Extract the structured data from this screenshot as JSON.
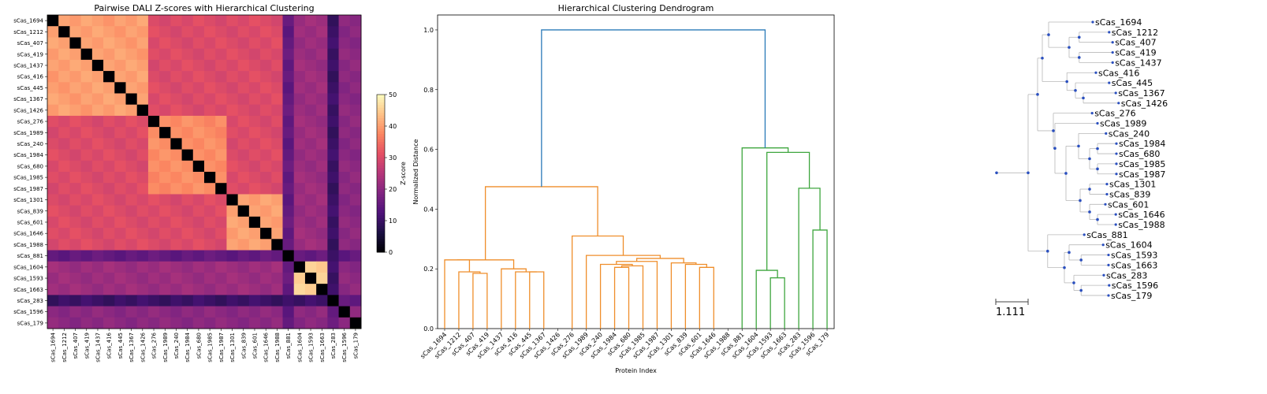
{
  "chart_data": [
    {
      "type": "heatmap",
      "title": "Pairwise DALI Z-scores with Hierarchical Clustering",
      "labels": [
        "sCas_1694",
        "sCas_1212",
        "sCas_407",
        "sCas_419",
        "sCas_1437",
        "sCas_416",
        "sCas_445",
        "sCas_1367",
        "sCas_1426",
        "sCas_276",
        "sCas_1989",
        "sCas_240",
        "sCas_1984",
        "sCas_680",
        "sCas_1985",
        "sCas_1987",
        "sCas_1301",
        "sCas_839",
        "sCas_601",
        "sCas_1646",
        "sCas_1988",
        "sCas_881",
        "sCas_1604",
        "sCas_1593",
        "sCas_1663",
        "sCas_283",
        "sCas_1596",
        "sCas_179"
      ],
      "clusters": [
        [
          0,
          8
        ],
        [
          9,
          20
        ],
        [
          21,
          21
        ],
        [
          22,
          24
        ],
        [
          25,
          25
        ],
        [
          26,
          27
        ]
      ],
      "block_values": [
        [
          40,
          30,
          30,
          15,
          22,
          10,
          20
        ],
        [
          30,
          38,
          30,
          15,
          22,
          10,
          20
        ],
        [
          30,
          30,
          40,
          15,
          22,
          10,
          20
        ],
        [
          15,
          15,
          15,
          0,
          15,
          10,
          15
        ],
        [
          22,
          22,
          22,
          15,
          45,
          10,
          20
        ],
        [
          10,
          10,
          10,
          10,
          10,
          0,
          15
        ],
        [
          20,
          20,
          20,
          15,
          20,
          15,
          20
        ]
      ],
      "colorbar": {
        "label": "Z-score",
        "range": [
          0,
          50
        ],
        "ticks": [
          0,
          10,
          20,
          30,
          40,
          50
        ]
      },
      "diagonal_value": 0
    },
    {
      "type": "dendrogram",
      "title": "Hierarchical Clustering Dendrogram",
      "xlabel": "Protein Index",
      "ylabel": "Normalized Distance",
      "ylim": [
        0,
        1.05
      ],
      "yticks": [
        "0.0",
        "0.2",
        "0.4",
        "0.6",
        "0.8",
        "1.0"
      ],
      "leaves": [
        "sCas_1694",
        "sCas_1212",
        "sCas_407",
        "sCas_419",
        "sCas_1437",
        "sCas_416",
        "sCas_445",
        "sCas_1367",
        "sCas_1426",
        "sCas_276",
        "sCas_1989",
        "sCas_240",
        "sCas_1984",
        "sCas_680",
        "sCas_1985",
        "sCas_1987",
        "sCas_1301",
        "sCas_839",
        "sCas_601",
        "sCas_1646",
        "sCas_1988",
        "sCas_881",
        "sCas_1604",
        "sCas_1593",
        "sCas_1663",
        "sCas_283",
        "sCas_1596",
        "sCas_179"
      ],
      "colors": {
        "cluster_a": "#ef8e2b",
        "cluster_b": "#3ea63e",
        "root": "#2a7ab8"
      },
      "links": [
        {
          "a": 2,
          "b": 3,
          "h": 0.185,
          "c": "cluster_a"
        },
        {
          "a": 1,
          "b": "n0",
          "h": 0.19,
          "c": "cluster_a"
        },
        {
          "a": 0,
          "b": "n1",
          "h": 0.23,
          "c": "cluster_a"
        },
        {
          "a": 6,
          "b": 7,
          "h": 0.19,
          "c": "cluster_a"
        },
        {
          "a": 5,
          "b": "n3",
          "h": 0.19,
          "c": "cluster_a"
        },
        {
          "a": 4,
          "b": "n4",
          "h": 0.2,
          "c": "cluster_a"
        },
        {
          "a": "n2",
          "b": "n5",
          "h": 0.23,
          "c": "cluster_a"
        },
        {
          "a": 12,
          "b": 13,
          "h": 0.205,
          "c": "cluster_a"
        },
        {
          "a": "n7",
          "b": 14,
          "h": 0.21,
          "c": "cluster_a"
        },
        {
          "a": 11,
          "b": "n8",
          "h": 0.215,
          "c": "cluster_a"
        },
        {
          "a": 18,
          "b": 19,
          "h": 0.205,
          "c": "cluster_a"
        },
        {
          "a": 17,
          "b": "n10",
          "h": 0.215,
          "c": "cluster_a"
        },
        {
          "a": 16,
          "b": "n11",
          "h": 0.22,
          "c": "cluster_a"
        },
        {
          "a": "n9",
          "b": 15,
          "h": 0.225,
          "c": "cluster_a"
        },
        {
          "a": "n13",
          "b": "n12",
          "h": 0.235,
          "c": "cluster_a"
        },
        {
          "a": 10,
          "b": "n14",
          "h": 0.245,
          "c": "cluster_a"
        },
        {
          "a": 9,
          "b": "n15",
          "h": 0.31,
          "c": "cluster_a"
        },
        {
          "a": "n6",
          "b": "n16",
          "h": 0.475,
          "c": "cluster_a"
        },
        {
          "a": 23,
          "b": 24,
          "h": 0.17,
          "c": "cluster_b"
        },
        {
          "a": 22,
          "b": "n18",
          "h": 0.195,
          "c": "cluster_b"
        },
        {
          "a": 26,
          "b": 27,
          "h": 0.33,
          "c": "cluster_b"
        },
        {
          "a": 25,
          "b": "n20",
          "h": 0.47,
          "c": "cluster_b"
        },
        {
          "a": "n19",
          "b": "n21",
          "h": 0.59,
          "c": "cluster_b"
        },
        {
          "a": 21,
          "b": "n22",
          "h": 0.605,
          "c": "cluster_b"
        },
        {
          "a": "n17",
          "b": "n23",
          "h": 1.0,
          "c": "root"
        }
      ]
    },
    {
      "type": "tree",
      "labels": [
        "sCas_1694",
        "sCas_1212",
        "sCas_407",
        "sCas_419",
        "sCas_1437",
        "sCas_416",
        "sCas_445",
        "sCas_1367",
        "sCas_1426",
        "sCas_276",
        "sCas_1989",
        "sCas_240",
        "sCas_1984",
        "sCas_680",
        "sCas_1985",
        "sCas_1987",
        "sCas_1301",
        "sCas_839",
        "sCas_601",
        "sCas_1646",
        "sCas_1988",
        "sCas_881",
        "sCas_1604",
        "sCas_1593",
        "sCas_1663",
        "sCas_283",
        "sCas_1596",
        "sCas_179"
      ],
      "leaf_depth": [
        3.05,
        3.57,
        3.68,
        3.68,
        3.68,
        3.15,
        3.57,
        3.78,
        3.87,
        3.03,
        3.2,
        3.47,
        3.8,
        3.8,
        3.8,
        3.8,
        3.5,
        3.5,
        3.45,
        3.78,
        3.78,
        2.78,
        3.38,
        3.55,
        3.55,
        3.4,
        3.57,
        3.55
      ],
      "scale_bar": "1.111",
      "node_color": "#2a4fbf"
    }
  ]
}
